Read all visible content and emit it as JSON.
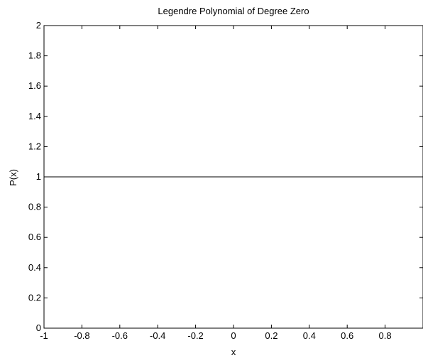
{
  "chart_data": {
    "type": "line",
    "title": "Legendre Polynomial of Degree Zero",
    "xlabel": "x",
    "ylabel": "P(x)",
    "xlim": [
      -1,
      1
    ],
    "ylim": [
      0,
      2
    ],
    "x_ticks": [
      -1,
      -0.8,
      -0.6,
      -0.4,
      -0.2,
      0,
      0.2,
      0.4,
      0.6,
      0.8
    ],
    "x_tick_labels": [
      "-1",
      "-0.8",
      "-0.6",
      "-0.4",
      "-0.2",
      "0",
      "0.2",
      "0.4",
      "0.6",
      "0.8"
    ],
    "y_ticks": [
      0,
      0.2,
      0.4,
      0.6,
      0.8,
      1,
      1.2,
      1.4,
      1.6,
      1.8,
      2
    ],
    "y_tick_labels": [
      "0",
      "0.2",
      "0.4",
      "0.6",
      "0.8",
      "1",
      "1.2",
      "1.4",
      "1.6",
      "1.8",
      "2"
    ],
    "grid": false,
    "series": [
      {
        "x": [
          -1,
          1
        ],
        "y": [
          1,
          1
        ],
        "color": "#000000"
      }
    ]
  }
}
